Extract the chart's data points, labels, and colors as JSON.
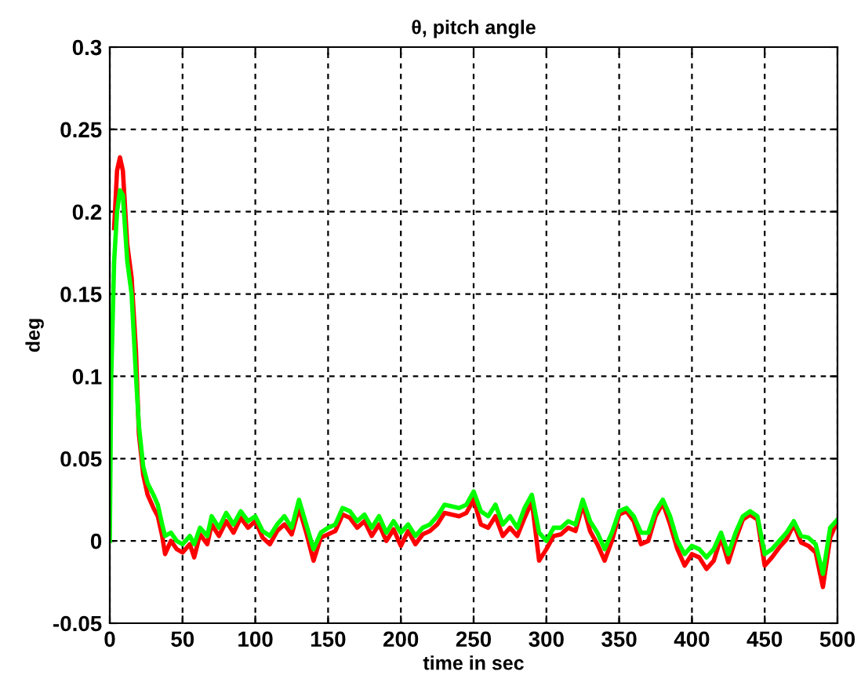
{
  "chart_data": {
    "type": "line",
    "title": "θ, pitch angle",
    "xlabel": "time in sec",
    "ylabel": "deg",
    "xlim": [
      0,
      500
    ],
    "xticks": [
      0,
      50,
      100,
      150,
      200,
      250,
      300,
      350,
      400,
      450,
      500
    ],
    "ylim": [
      -0.05,
      0.3
    ],
    "yticks": [
      -0.05,
      0,
      0.05,
      0.1,
      0.15,
      0.2,
      0.25,
      0.3
    ],
    "grid": true,
    "line_style": "solid",
    "marker": "none",
    "x": [
      0,
      1,
      3,
      5,
      7,
      9,
      12,
      15,
      18,
      20,
      23,
      26,
      30,
      33,
      36,
      38,
      42,
      46,
      50,
      55,
      58,
      62,
      67,
      70,
      75,
      80,
      85,
      90,
      95,
      100,
      105,
      110,
      115,
      120,
      125,
      130,
      135,
      140,
      145,
      150,
      155,
      160,
      165,
      170,
      175,
      180,
      185,
      190,
      195,
      200,
      205,
      210,
      215,
      220,
      225,
      230,
      240,
      245,
      250,
      255,
      260,
      265,
      270,
      275,
      280,
      285,
      290,
      295,
      300,
      305,
      310,
      315,
      320,
      325,
      330,
      335,
      340,
      345,
      350,
      355,
      360,
      365,
      370,
      375,
      380,
      385,
      390,
      395,
      400,
      405,
      410,
      415,
      420,
      425,
      430,
      435,
      440,
      445,
      450,
      455,
      460,
      465,
      470,
      475,
      480,
      485,
      490,
      495,
      500
    ],
    "series": [
      {
        "color": "#ff0000",
        "values": [
          null,
          null,
          0.19,
          0.225,
          0.233,
          0.225,
          0.18,
          0.16,
          0.115,
          0.065,
          0.04,
          0.028,
          0.02,
          0.015,
          0.003,
          -0.008,
          0,
          -0.005,
          -0.007,
          -0.002,
          -0.01,
          0.004,
          -0.002,
          0.01,
          0.003,
          0.012,
          0.005,
          0.014,
          0.008,
          0.012,
          0.002,
          -0.002,
          0.006,
          0.01,
          0.004,
          0.02,
          0.005,
          -0.012,
          0.002,
          0.004,
          0.006,
          0.016,
          0.014,
          0.008,
          0.012,
          0.003,
          0.01,
          0,
          0.007,
          -0.003,
          0.006,
          -0.002,
          0.004,
          0.006,
          0.01,
          0.017,
          0.015,
          0.017,
          0.025,
          0.01,
          0.008,
          0.015,
          0.003,
          0.008,
          0.003,
          0.014,
          0.024,
          -0.012,
          -0.005,
          0.003,
          0.004,
          0.008,
          0.006,
          0.022,
          0.006,
          -0.002,
          -0.012,
          0,
          0.016,
          0.018,
          0.012,
          -0.002,
          0,
          0.015,
          0.023,
          0.01,
          -0.005,
          -0.015,
          -0.008,
          -0.01,
          -0.017,
          -0.012,
          0.002,
          -0.013,
          0.001,
          0.013,
          0.016,
          0.013,
          -0.015,
          -0.01,
          -0.004,
          0.001,
          0.01,
          -0.001,
          -0.003,
          -0.007,
          -0.028,
          0.002,
          0.012
        ]
      },
      {
        "color": "#00ff00",
        "values": [
          0,
          0.1,
          0.17,
          0.2,
          0.213,
          0.21,
          0.17,
          0.15,
          0.1,
          0.07,
          0.045,
          0.035,
          0.028,
          0.022,
          0.01,
          0.003,
          0.005,
          0,
          -0.002,
          0.003,
          -0.002,
          0.008,
          0.003,
          0.015,
          0.008,
          0.017,
          0.01,
          0.018,
          0.012,
          0.015,
          0.006,
          0.003,
          0.01,
          0.015,
          0.008,
          0.025,
          0.01,
          -0.005,
          0.005,
          0.008,
          0.01,
          0.02,
          0.018,
          0.012,
          0.016,
          0.008,
          0.015,
          0.005,
          0.012,
          0.005,
          0.01,
          0.003,
          0.008,
          0.01,
          0.015,
          0.022,
          0.02,
          0.022,
          0.03,
          0.018,
          0.015,
          0.022,
          0.01,
          0.015,
          0.008,
          0.02,
          0.028,
          0.005,
          0,
          0.008,
          0.008,
          0.012,
          0.01,
          0.025,
          0.012,
          0.005,
          -0.005,
          0.005,
          0.018,
          0.02,
          0.015,
          0.005,
          0.005,
          0.018,
          0.025,
          0.015,
          0,
          -0.008,
          -0.003,
          -0.005,
          -0.01,
          -0.005,
          0.005,
          -0.008,
          0.005,
          0.015,
          0.018,
          0.015,
          -0.008,
          -0.005,
          0,
          0.005,
          0.012,
          0.003,
          0.002,
          -0.002,
          -0.02,
          0.008,
          0.013
        ]
      }
    ]
  }
}
